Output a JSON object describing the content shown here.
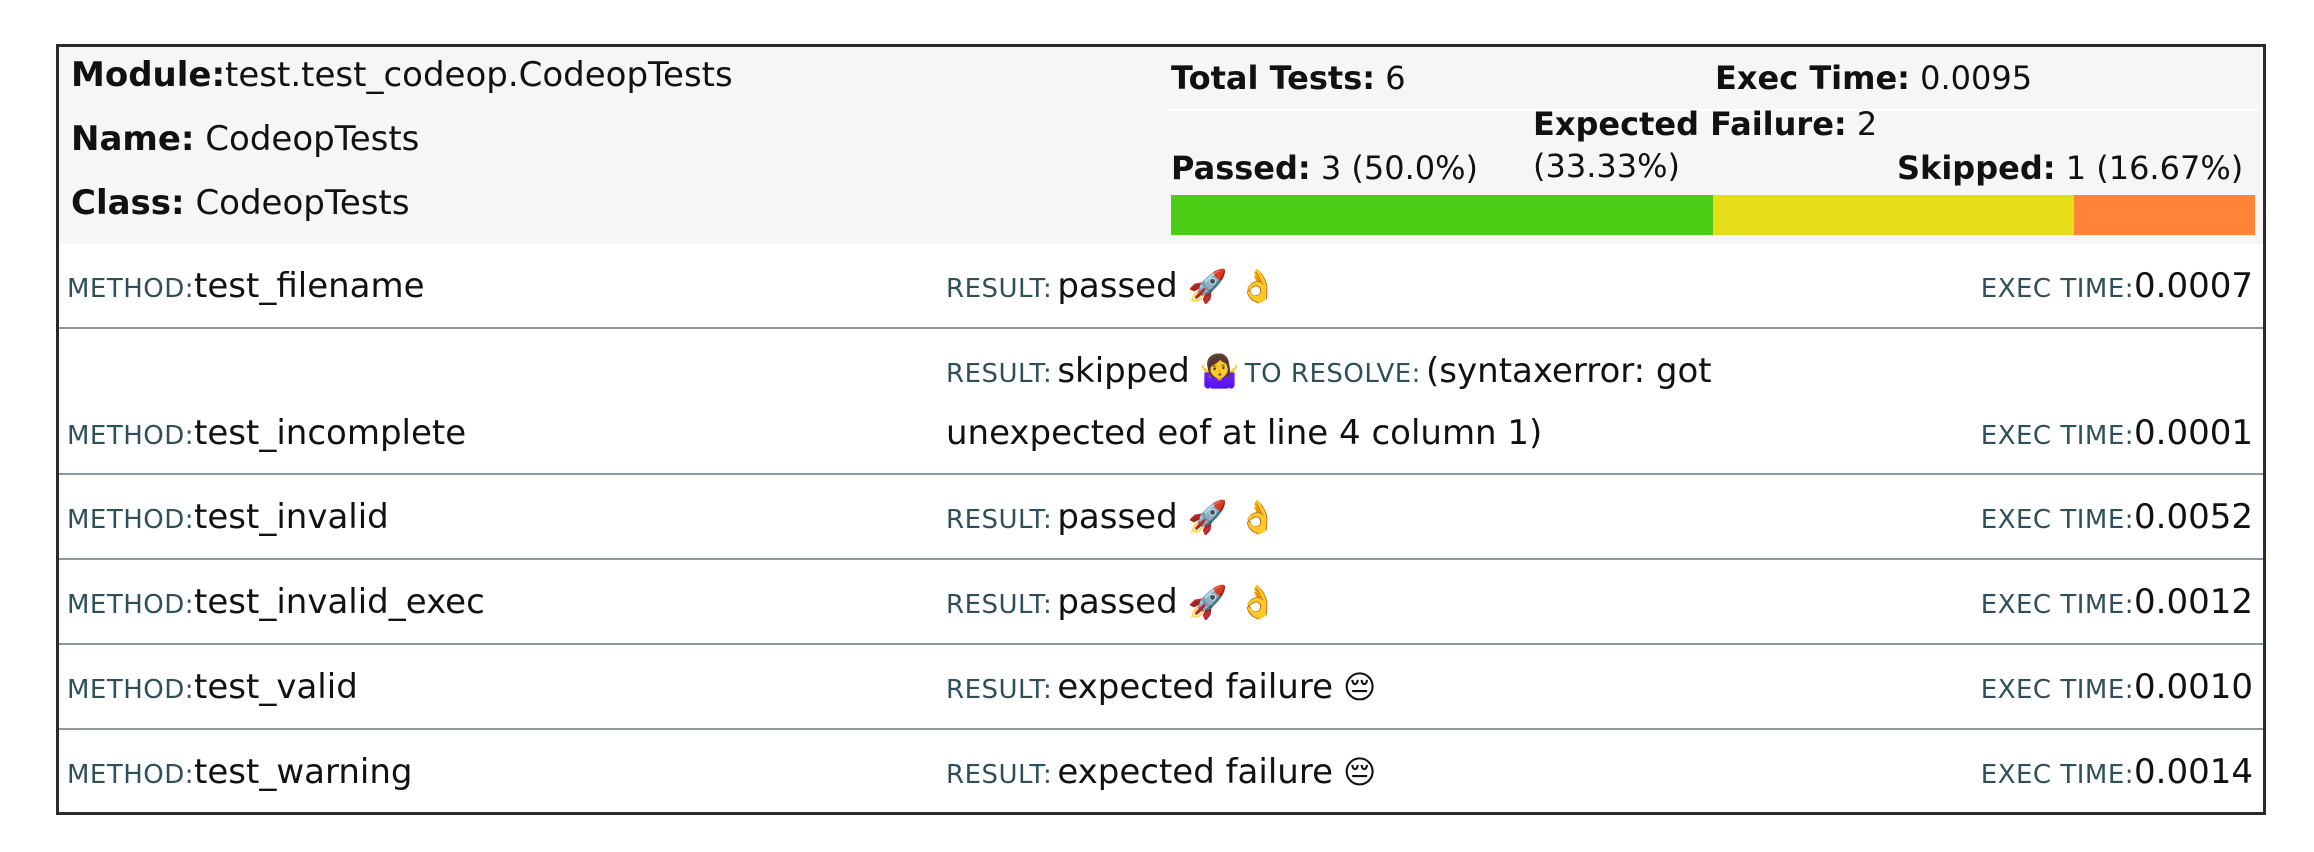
{
  "header": {
    "module_label": "Module:",
    "module_value": "test.test_codeop.CodeopTests",
    "name_label": "Name:",
    "name_value": "CodeopTests",
    "class_label": "Class:",
    "class_value": "CodeopTests",
    "total_label": "Total Tests:",
    "total_value": "6",
    "exec_label": "Exec Time:",
    "exec_value": "0.0095",
    "expected_label": "Expected Failure:",
    "expected_value": "2",
    "expected_pct": "(33.33%)",
    "passed_label": "Passed:",
    "passed_value": "3 (50.0%)",
    "skipped_label": "Skipped:",
    "skipped_value": "1 (16.67%)"
  },
  "progress": {
    "passed_fraction": 0.5,
    "expected_failure_fraction": 0.3333,
    "skipped_fraction": 0.1667,
    "passed_color": "#4ccc14",
    "expected_failure_color": "#e6de18",
    "skipped_color": "#ff8338"
  },
  "labels": {
    "method": "METHOD:",
    "result": "RESULT:",
    "exec_time": "EXEC TIME:",
    "to_resolve": "TO RESOLVE:"
  },
  "rows": [
    {
      "method": "test_filename",
      "result": "passed",
      "emoji": "🚀 👌",
      "exec": "0.0007"
    },
    {
      "method": "test_incomplete",
      "result": "skipped",
      "emoji": "🤷‍♀️",
      "resolve_line1": "(syntaxerror: got",
      "resolve_line2": "unexpected eof at line 4 column 1)",
      "exec": "0.0001"
    },
    {
      "method": "test_invalid",
      "result": "passed",
      "emoji": "🚀 👌",
      "exec": "0.0052"
    },
    {
      "method": "test_invalid_exec",
      "result": "passed",
      "emoji": "🚀 👌",
      "exec": "0.0012"
    },
    {
      "method": "test_valid",
      "result": "expected failure",
      "emoji": "😔",
      "exec": "0.0010"
    },
    {
      "method": "test_warning",
      "result": "expected failure",
      "emoji": "😔",
      "exec": "0.0014"
    }
  ]
}
